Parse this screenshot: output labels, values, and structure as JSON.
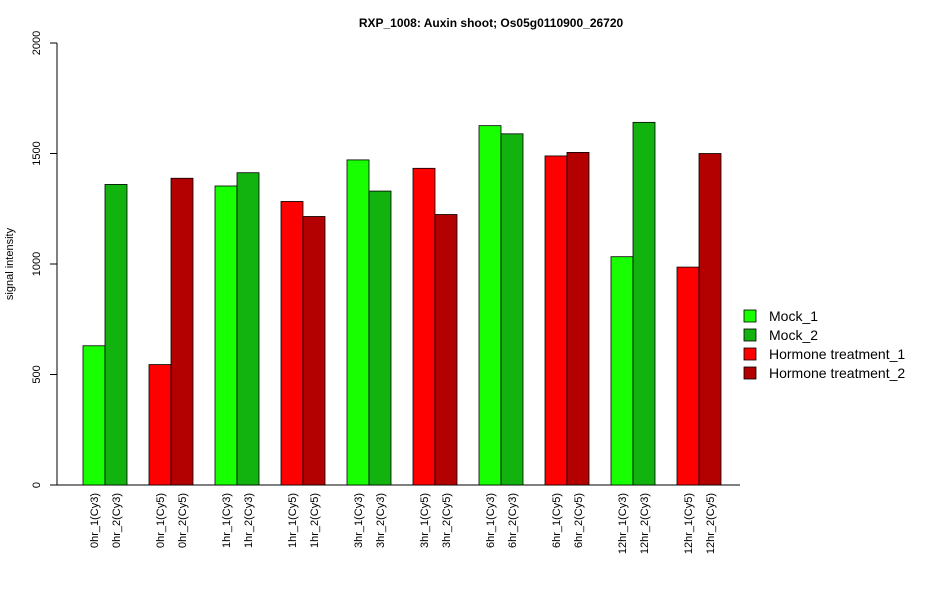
{
  "chart_data": {
    "type": "bar",
    "title": "RXP_1008: Auxin shoot; Os05g0110900_26720",
    "xlabel": "",
    "ylabel": "signal intensity",
    "ylim": [
      0,
      2000
    ],
    "yticks": [
      0,
      500,
      1000,
      1500,
      2000
    ],
    "legend_position": "right",
    "grid": false,
    "legend": [
      {
        "name": "Mock_1",
        "color": "#17ff00"
      },
      {
        "name": "Mock_2",
        "color": "#12b20f"
      },
      {
        "name": "Hormone treatment_1",
        "color": "#ff0000"
      },
      {
        "name": "Hormone treatment_2",
        "color": "#b30000"
      }
    ],
    "bars": [
      {
        "label": "0hr_1(Cy3)",
        "value": 630,
        "series": "Mock_1"
      },
      {
        "label": "0hr_2(Cy3)",
        "value": 1360,
        "series": "Mock_2"
      },
      {
        "label": "0hr_1(Cy5)",
        "value": 545,
        "series": "Hormone treatment_1"
      },
      {
        "label": "0hr_2(Cy5)",
        "value": 1388,
        "series": "Hormone treatment_2"
      },
      {
        "label": "1hr_1(Cy3)",
        "value": 1353,
        "series": "Mock_1"
      },
      {
        "label": "1hr_2(Cy3)",
        "value": 1413,
        "series": "Mock_2"
      },
      {
        "label": "1hr_1(Cy5)",
        "value": 1283,
        "series": "Hormone treatment_1"
      },
      {
        "label": "1hr_2(Cy5)",
        "value": 1215,
        "series": "Hormone treatment_2"
      },
      {
        "label": "3hr_1(Cy3)",
        "value": 1471,
        "series": "Mock_1"
      },
      {
        "label": "3hr_2(Cy3)",
        "value": 1330,
        "series": "Mock_2"
      },
      {
        "label": "3hr_1(Cy5)",
        "value": 1433,
        "series": "Hormone treatment_1"
      },
      {
        "label": "3hr_2(Cy5)",
        "value": 1224,
        "series": "Hormone treatment_2"
      },
      {
        "label": "6hr_1(Cy3)",
        "value": 1626,
        "series": "Mock_1"
      },
      {
        "label": "6hr_2(Cy3)",
        "value": 1589,
        "series": "Mock_2"
      },
      {
        "label": "6hr_1(Cy5)",
        "value": 1489,
        "series": "Hormone treatment_1"
      },
      {
        "label": "6hr_2(Cy5)",
        "value": 1505,
        "series": "Hormone treatment_2"
      },
      {
        "label": "12hr_1(Cy3)",
        "value": 1033,
        "series": "Mock_1"
      },
      {
        "label": "12hr_2(Cy3)",
        "value": 1641,
        "series": "Mock_2"
      },
      {
        "label": "12hr_1(Cy5)",
        "value": 986,
        "series": "Hormone treatment_1"
      },
      {
        "label": "12hr_2(Cy5)",
        "value": 1500,
        "series": "Hormone treatment_2"
      }
    ]
  }
}
